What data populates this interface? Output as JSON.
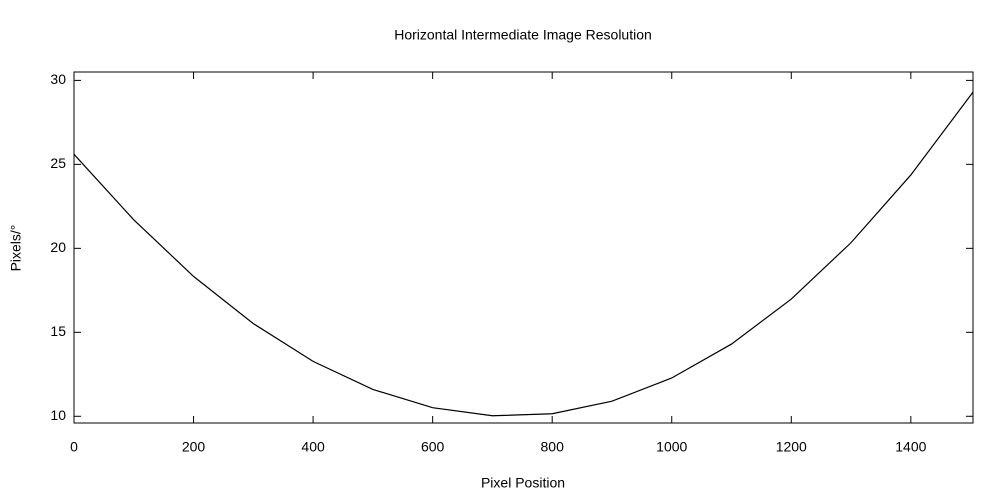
{
  "chart_data": {
    "type": "line",
    "title": "Horizontal Intermediate Image Resolution",
    "x_label": "Pixel Position",
    "y_label": "Pixels/°",
    "x": [
      0,
      100,
      200,
      300,
      400,
      500,
      600,
      700,
      800,
      900,
      1000,
      1100,
      1200,
      1300,
      1400,
      1504
    ],
    "series": [
      {
        "color": "#000000",
        "values": [
          25.6,
          21.7,
          18.33,
          15.52,
          13.27,
          11.6,
          10.51,
          10.03,
          10.15,
          10.9,
          12.28,
          14.3,
          16.98,
          20.34,
          24.37,
          29.3
        ]
      }
    ],
    "xlim": [
      0,
      1504
    ],
    "ylim": [
      9.6,
      30.5
    ],
    "xticks": [
      0,
      200,
      400,
      600,
      800,
      1000,
      1200,
      1400
    ],
    "yticks": [
      10,
      15,
      20,
      25,
      30
    ],
    "grid": false
  }
}
